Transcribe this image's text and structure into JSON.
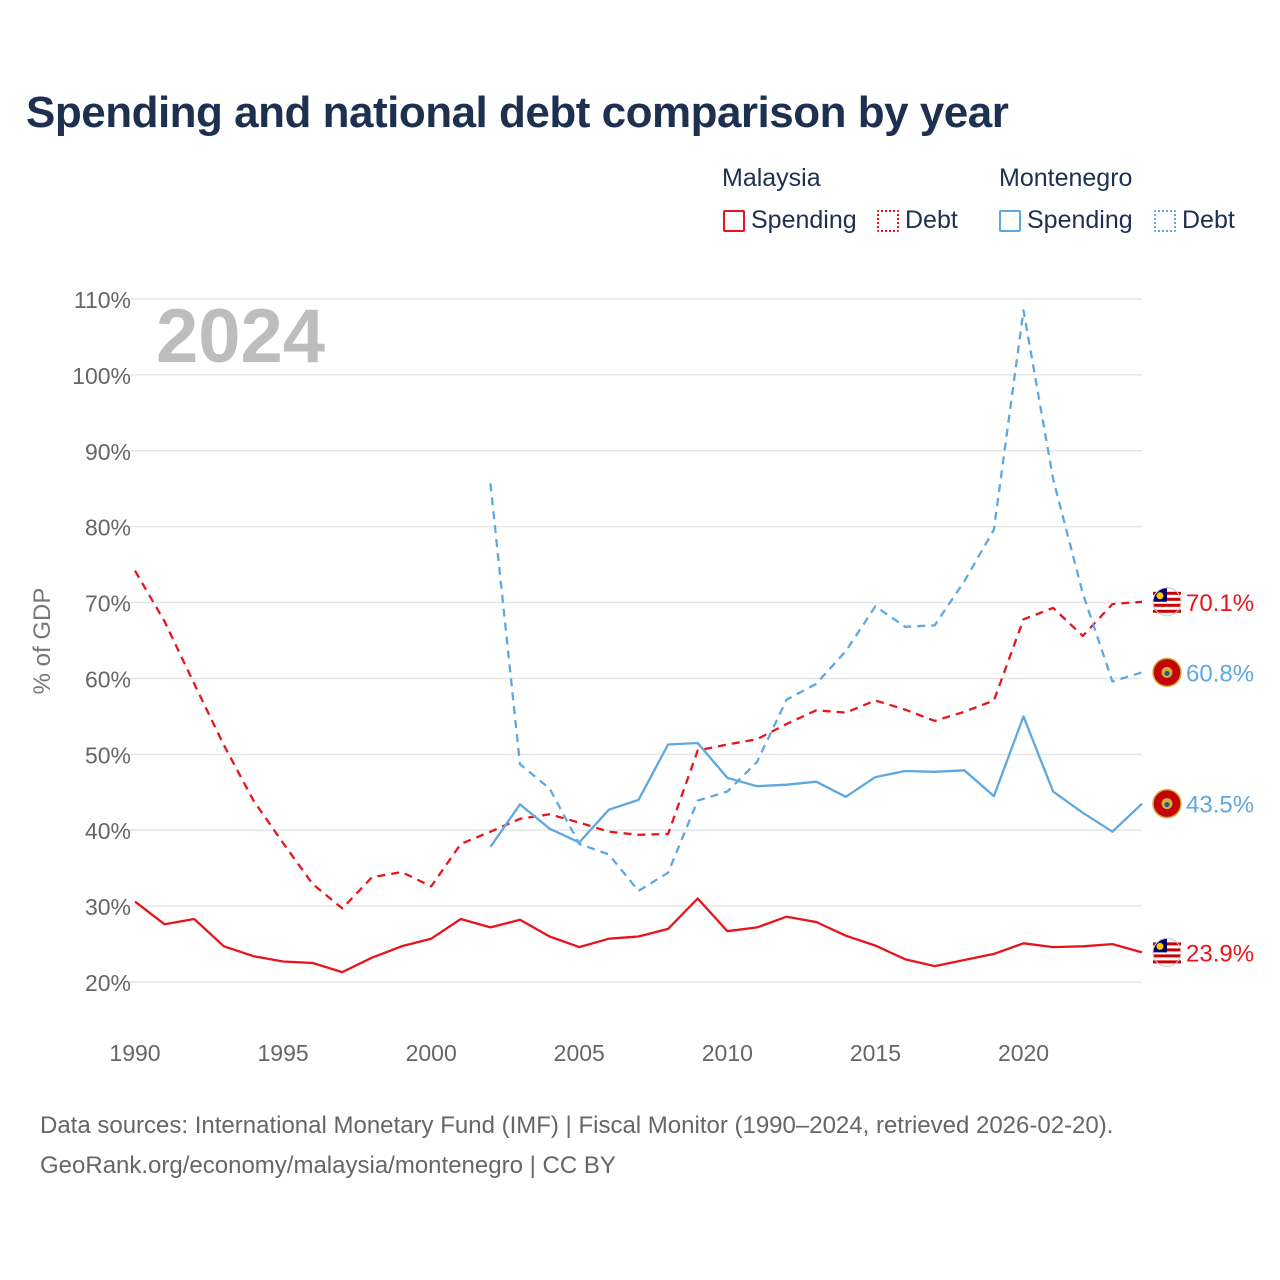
{
  "title": "Spending and national debt comparison by year",
  "legend": {
    "malaysia_label": "Malaysia",
    "montenegro_label": "Montenegro",
    "spending_label": "Spending",
    "debt_label": "Debt"
  },
  "colors": {
    "malaysia": "#e8141b",
    "montenegro": "#5ea8e2"
  },
  "source": {
    "line1": "Data sources: International Monetary Fund (IMF) | Fiscal Monitor (1990–2024, retrieved 2026-02-20).",
    "line2": "GeoRank.org/economy/malaysia/montenegro | CC BY"
  },
  "chart_data": {
    "type": "line",
    "year_label": "2024",
    "ylabel": "% of GDP",
    "ylim": [
      20,
      110
    ],
    "xlim": [
      1990,
      2024
    ],
    "yticks": [
      20,
      30,
      40,
      50,
      60,
      70,
      80,
      90,
      100,
      110
    ],
    "ytick_labels": [
      "20%",
      "30%",
      "40%",
      "50%",
      "60%",
      "70%",
      "80%",
      "90%",
      "100%",
      "110%"
    ],
    "xticks": [
      1990,
      1995,
      2000,
      2005,
      2010,
      2015,
      2020
    ],
    "xtick_labels": [
      "1990",
      "1995",
      "2000",
      "2005",
      "2010",
      "2015",
      "2020"
    ],
    "series": [
      {
        "name": "Malaysia Spending",
        "country": "malaysia",
        "style": "solid",
        "end_label": "23.9%",
        "x": [
          1990,
          1991,
          1992,
          1993,
          1994,
          1995,
          1996,
          1997,
          1998,
          1999,
          2000,
          2001,
          2002,
          2003,
          2004,
          2005,
          2006,
          2007,
          2008,
          2009,
          2010,
          2011,
          2012,
          2013,
          2014,
          2015,
          2016,
          2017,
          2018,
          2019,
          2020,
          2021,
          2022,
          2023,
          2024
        ],
        "values": [
          30.6,
          27.6,
          28.3,
          24.7,
          23.4,
          22.7,
          22.5,
          21.3,
          23.2,
          24.7,
          25.7,
          28.3,
          27.2,
          28.2,
          26.0,
          24.6,
          25.7,
          26.0,
          27.0,
          31.0,
          26.7,
          27.2,
          28.6,
          27.9,
          26.1,
          24.8,
          23.0,
          22.1,
          22.9,
          23.7,
          25.1,
          24.6,
          24.7,
          25.0,
          23.9
        ]
      },
      {
        "name": "Malaysia Debt",
        "country": "malaysia",
        "style": "dashed",
        "end_label": "70.1%",
        "x": [
          1990,
          1991,
          1992,
          1993,
          1994,
          1995,
          1996,
          1997,
          1998,
          1999,
          2000,
          2001,
          2002,
          2003,
          2004,
          2005,
          2006,
          2007,
          2008,
          2009,
          2010,
          2011,
          2012,
          2013,
          2014,
          2015,
          2016,
          2017,
          2018,
          2019,
          2020,
          2021,
          2022,
          2023,
          2024
        ],
        "values": [
          74.2,
          67.5,
          59.3,
          51.2,
          43.9,
          38.3,
          32.9,
          29.7,
          33.8,
          34.5,
          32.6,
          38.2,
          39.8,
          41.5,
          42.1,
          41.0,
          39.8,
          39.4,
          39.5,
          50.5,
          51.3,
          52.0,
          54.0,
          55.8,
          55.5,
          57.1,
          55.9,
          54.4,
          55.6,
          57.1,
          67.8,
          69.3,
          65.6,
          69.8,
          70.1
        ]
      },
      {
        "name": "Montenegro Spending",
        "country": "montenegro",
        "style": "solid",
        "end_label": "43.5%",
        "x": [
          2002,
          2003,
          2004,
          2005,
          2006,
          2007,
          2008,
          2009,
          2010,
          2011,
          2012,
          2013,
          2014,
          2015,
          2016,
          2017,
          2018,
          2019,
          2020,
          2021,
          2022,
          2023,
          2024
        ],
        "values": [
          37.8,
          43.4,
          40.2,
          38.4,
          42.7,
          44.0,
          51.3,
          51.5,
          46.9,
          45.8,
          46.0,
          46.4,
          44.4,
          47.0,
          47.8,
          47.7,
          47.9,
          44.5,
          55.0,
          45.1,
          42.3,
          39.8,
          43.5
        ]
      },
      {
        "name": "Montenegro Debt",
        "country": "montenegro",
        "style": "dashed",
        "end_label": "60.8%",
        "x": [
          2002,
          2003,
          2004,
          2005,
          2006,
          2007,
          2008,
          2009,
          2010,
          2011,
          2012,
          2013,
          2014,
          2015,
          2016,
          2017,
          2018,
          2019,
          2020,
          2021,
          2022,
          2023,
          2024
        ],
        "values": [
          85.7,
          48.7,
          45.5,
          38.2,
          36.8,
          32.0,
          34.4,
          43.9,
          45.1,
          49.0,
          57.2,
          59.3,
          63.6,
          69.5,
          66.8,
          67.0,
          72.8,
          79.6,
          108.5,
          86.3,
          71.2,
          59.6,
          60.8
        ]
      }
    ]
  }
}
